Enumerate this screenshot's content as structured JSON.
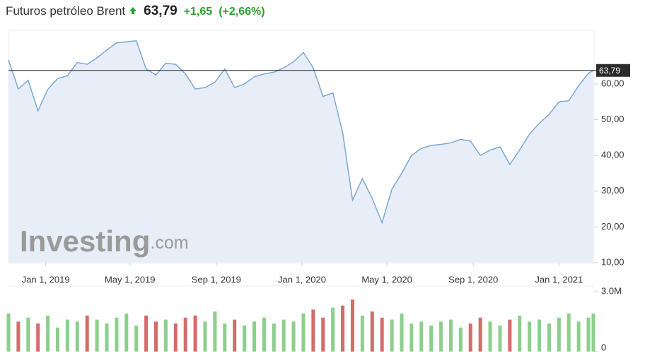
{
  "header": {
    "title": "Futuros petróleo Brent",
    "price": "63,79",
    "change": "+1,65",
    "change_pct": "(+2,66%)"
  },
  "watermark": {
    "brand": "Investing",
    "suffix": ".com"
  },
  "chart_data": [
    {
      "type": "line",
      "color": "#7ba7d7",
      "area_color": "#e8eef7",
      "x": [
        "2018-11-09",
        "2018-11-23",
        "2018-12-07",
        "2018-12-21",
        "2019-01-04",
        "2019-01-18",
        "2019-02-01",
        "2019-02-15",
        "2019-03-01",
        "2019-03-15",
        "2019-03-29",
        "2019-04-12",
        "2019-04-26",
        "2019-05-10",
        "2019-05-24",
        "2019-06-07",
        "2019-06-21",
        "2019-07-05",
        "2019-07-19",
        "2019-08-02",
        "2019-08-16",
        "2019-08-30",
        "2019-09-13",
        "2019-09-27",
        "2019-10-11",
        "2019-10-25",
        "2019-11-08",
        "2019-11-22",
        "2019-12-06",
        "2019-12-20",
        "2020-01-03",
        "2020-01-17",
        "2020-01-31",
        "2020-02-14",
        "2020-02-28",
        "2020-03-13",
        "2020-03-27",
        "2020-04-10",
        "2020-04-24",
        "2020-05-08",
        "2020-05-22",
        "2020-06-05",
        "2020-06-19",
        "2020-07-03",
        "2020-07-17",
        "2020-07-31",
        "2020-08-14",
        "2020-08-28",
        "2020-09-11",
        "2020-09-25",
        "2020-10-09",
        "2020-10-23",
        "2020-11-06",
        "2020-11-20",
        "2020-12-04",
        "2020-12-18",
        "2021-01-01",
        "2021-01-15",
        "2021-01-29",
        "2021-02-12",
        "2021-02-19"
      ],
      "values": [
        66.7,
        58.6,
        61.0,
        52.5,
        58.5,
        61.5,
        62.3,
        66.0,
        65.5,
        67.3,
        69.5,
        71.5,
        71.8,
        72.1,
        64.2,
        62.5,
        65.8,
        65.5,
        62.8,
        58.6,
        59.0,
        60.5,
        64.2,
        59.0,
        60.0,
        62.0,
        62.8,
        63.3,
        64.5,
        66.2,
        68.8,
        64.5,
        56.5,
        57.5,
        46.3,
        27.5,
        33.5,
        28.0,
        21.2,
        30.5,
        35.0,
        40.0,
        42.0,
        42.8,
        43.1,
        43.5,
        44.5,
        44.0,
        40.0,
        41.5,
        42.4,
        37.5,
        41.5,
        46.0,
        49.0,
        51.5,
        55.0,
        55.3,
        59.5,
        63.0,
        63.8
      ],
      "xlim": [
        "2018-11-09",
        "2021-02-19"
      ],
      "xticks": [
        {
          "value": "2019-01-01",
          "label": "Jan 1, 2019"
        },
        {
          "value": "2019-05-01",
          "label": "May 1, 2019"
        },
        {
          "value": "2019-09-01",
          "label": "Sep 1, 2019"
        },
        {
          "value": "2020-01-01",
          "label": "Jan 1, 2020"
        },
        {
          "value": "2020-05-01",
          "label": "May 1, 2020"
        },
        {
          "value": "2020-09-01",
          "label": "Sep 1, 2020"
        },
        {
          "value": "2021-01-01",
          "label": "Jan 1, 2021"
        }
      ],
      "ylim": [
        10,
        75
      ],
      "yticks": [
        {
          "value": 10,
          "label": "10,00"
        },
        {
          "value": 20,
          "label": "20,00"
        },
        {
          "value": 30,
          "label": "30,00"
        },
        {
          "value": 40,
          "label": "40,00"
        },
        {
          "value": 50,
          "label": "50,00"
        },
        {
          "value": 60,
          "label": "60,00"
        }
      ],
      "last_price": {
        "value": 63.79,
        "label": "63,79"
      }
    },
    {
      "type": "bar",
      "x": [
        "2018-11-09",
        "2018-11-23",
        "2018-12-07",
        "2018-12-21",
        "2019-01-04",
        "2019-01-18",
        "2019-02-01",
        "2019-02-15",
        "2019-03-01",
        "2019-03-15",
        "2019-03-29",
        "2019-04-12",
        "2019-04-26",
        "2019-05-10",
        "2019-05-24",
        "2019-06-07",
        "2019-06-21",
        "2019-07-05",
        "2019-07-19",
        "2019-08-02",
        "2019-08-16",
        "2019-08-30",
        "2019-09-13",
        "2019-09-27",
        "2019-10-11",
        "2019-10-25",
        "2019-11-08",
        "2019-11-22",
        "2019-12-06",
        "2019-12-20",
        "2020-01-03",
        "2020-01-17",
        "2020-01-31",
        "2020-02-14",
        "2020-02-28",
        "2020-03-13",
        "2020-03-27",
        "2020-04-10",
        "2020-04-24",
        "2020-05-08",
        "2020-05-22",
        "2020-06-05",
        "2020-06-19",
        "2020-07-03",
        "2020-07-17",
        "2020-07-31",
        "2020-08-14",
        "2020-08-28",
        "2020-09-11",
        "2020-09-25",
        "2020-10-09",
        "2020-10-23",
        "2020-11-06",
        "2020-11-20",
        "2020-12-04",
        "2020-12-18",
        "2021-01-01",
        "2021-01-15",
        "2021-01-29",
        "2021-02-12",
        "2021-02-19"
      ],
      "values": [
        1900000,
        1500000,
        1700000,
        1400000,
        1800000,
        1200000,
        1600000,
        1500000,
        1800000,
        1600000,
        1400000,
        1700000,
        1900000,
        1300000,
        1800000,
        1500000,
        1600000,
        1400000,
        1700000,
        1800000,
        1500000,
        2000000,
        1400000,
        1600000,
        1300000,
        1500000,
        1700000,
        1400000,
        1600000,
        1500000,
        1900000,
        2100000,
        1700000,
        2200000,
        2300000,
        2600000,
        1800000,
        2000000,
        1700000,
        1600000,
        1900000,
        1400000,
        1500000,
        1300000,
        1500000,
        1600000,
        1200000,
        1400000,
        1700000,
        1500000,
        1300000,
        1600000,
        1800000,
        1500000,
        1600000,
        1400000,
        1700000,
        1900000,
        1500000,
        1700000,
        1900000
      ],
      "colors": [
        "#8ccf8c",
        "#d66b6b",
        "#8ccf8c",
        "#d66b6b",
        "#8ccf8c",
        "#8ccf8c",
        "#8ccf8c",
        "#8ccf8c",
        "#d66b6b",
        "#8ccf8c",
        "#8ccf8c",
        "#8ccf8c",
        "#8ccf8c",
        "#8ccf8c",
        "#d66b6b",
        "#d66b6b",
        "#8ccf8c",
        "#d66b6b",
        "#d66b6b",
        "#d66b6b",
        "#8ccf8c",
        "#8ccf8c",
        "#8ccf8c",
        "#d66b6b",
        "#8ccf8c",
        "#8ccf8c",
        "#8ccf8c",
        "#8ccf8c",
        "#8ccf8c",
        "#8ccf8c",
        "#8ccf8c",
        "#d66b6b",
        "#d66b6b",
        "#8ccf8c",
        "#d66b6b",
        "#d66b6b",
        "#8ccf8c",
        "#d66b6b",
        "#d66b6b",
        "#8ccf8c",
        "#8ccf8c",
        "#8ccf8c",
        "#8ccf8c",
        "#8ccf8c",
        "#8ccf8c",
        "#8ccf8c",
        "#8ccf8c",
        "#d66b6b",
        "#d66b6b",
        "#8ccf8c",
        "#8ccf8c",
        "#d66b6b",
        "#8ccf8c",
        "#8ccf8c",
        "#8ccf8c",
        "#8ccf8c",
        "#8ccf8c",
        "#8ccf8c",
        "#8ccf8c",
        "#8ccf8c",
        "#8ccf8c"
      ],
      "xlim": [
        "2018-11-09",
        "2021-02-19"
      ],
      "ylim": [
        0,
        3000000
      ],
      "yticks": [
        0,
        {
          "value": 3000000,
          "label": "3.0M"
        }
      ]
    }
  ]
}
